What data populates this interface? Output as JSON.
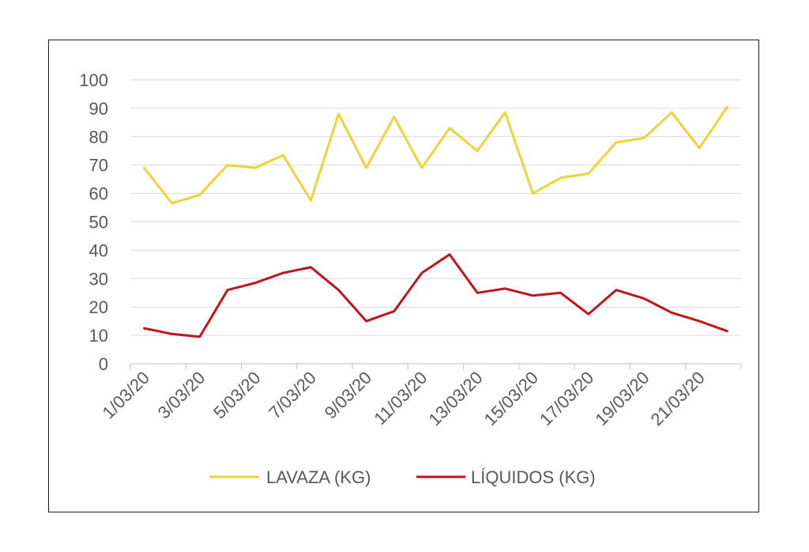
{
  "chart_data": {
    "type": "line",
    "title": "",
    "xlabel": "",
    "ylabel": "",
    "ylim": [
      0,
      100
    ],
    "yticks": [
      0,
      10,
      20,
      30,
      40,
      50,
      60,
      70,
      80,
      90,
      100
    ],
    "grid": true,
    "legend_position": "bottom",
    "x": [
      "1/03/20",
      "2/03/20",
      "3/03/20",
      "4/03/20",
      "5/03/20",
      "6/03/20",
      "7/03/20",
      "8/03/20",
      "9/03/20",
      "10/03/20",
      "11/03/20",
      "12/03/20",
      "13/03/20",
      "14/03/20",
      "15/03/20",
      "16/03/20",
      "17/03/20",
      "18/03/20",
      "19/03/20",
      "20/03/20",
      "21/03/20",
      "22/03/20"
    ],
    "xtick_labels": [
      "1/03/20",
      "3/03/20",
      "5/03/20",
      "7/03/20",
      "9/03/20",
      "11/03/20",
      "13/03/20",
      "15/03/20",
      "17/03/20",
      "19/03/20",
      "21/03/20"
    ],
    "series": [
      {
        "name": "LAVAZA (KG)",
        "color": "#EED23A",
        "values": [
          69,
          56.5,
          59.5,
          70,
          69,
          73.5,
          57.5,
          88,
          69,
          87,
          69,
          83,
          75,
          88.5,
          60,
          65.5,
          67,
          78,
          79.5,
          88.5,
          76,
          90.5
        ]
      },
      {
        "name": "LÍQUIDOS (KG)",
        "color": "#C0141E",
        "values": [
          12.5,
          10.5,
          9.5,
          26,
          28.5,
          32,
          34,
          26,
          15,
          18.5,
          32,
          38.5,
          25,
          26.5,
          24,
          25,
          17.5,
          26,
          23,
          18,
          15,
          11.5
        ]
      }
    ]
  }
}
